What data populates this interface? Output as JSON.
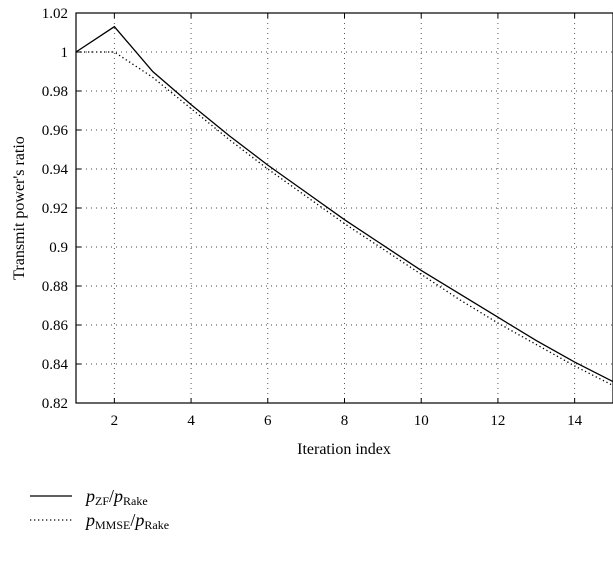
{
  "chart_data": {
    "type": "line",
    "title": "",
    "xlabel": "Iteration index",
    "ylabel": "Transmit power's ratio",
    "xlim": [
      1,
      15
    ],
    "ylim": [
      0.82,
      1.02
    ],
    "xticks": [
      2,
      4,
      6,
      8,
      10,
      12,
      14
    ],
    "xtick_labels": [
      "2",
      "4",
      "6",
      "8",
      "10",
      "12",
      "14"
    ],
    "yticks": [
      0.82,
      0.84,
      0.86,
      0.88,
      0.9,
      0.92,
      0.94,
      0.96,
      0.98,
      1,
      1.02
    ],
    "ytick_labels": [
      "0.82",
      "0.84",
      "0.86",
      "0.88",
      "0.9",
      "0.92",
      "0.94",
      "0.96",
      "0.98",
      "1",
      "1.02"
    ],
    "grid": true,
    "legend_position": "bottom-left, below plot",
    "x": [
      1,
      2,
      3,
      4,
      5,
      6,
      7,
      8,
      9,
      10,
      11,
      12,
      13,
      14,
      15
    ],
    "series": [
      {
        "legend": {
          "main": "p",
          "sub1": "ZF",
          "slash": "/",
          "main2": "p",
          "sub2": "Rake"
        },
        "line_style": "solid",
        "color": "#000000",
        "values": [
          1.0,
          1.013,
          0.99,
          0.973,
          0.957,
          0.942,
          0.928,
          0.914,
          0.901,
          0.888,
          0.876,
          0.864,
          0.852,
          0.841,
          0.831
        ]
      },
      {
        "legend": {
          "main": "p",
          "sub1": "MMSE",
          "slash": "/",
          "main2": "p",
          "sub2": "Rake"
        },
        "line_style": "dotted",
        "color": "#000000",
        "values": [
          1.0,
          1.0,
          0.987,
          0.971,
          0.955,
          0.94,
          0.926,
          0.912,
          0.899,
          0.886,
          0.873,
          0.861,
          0.85,
          0.839,
          0.829
        ]
      }
    ]
  }
}
